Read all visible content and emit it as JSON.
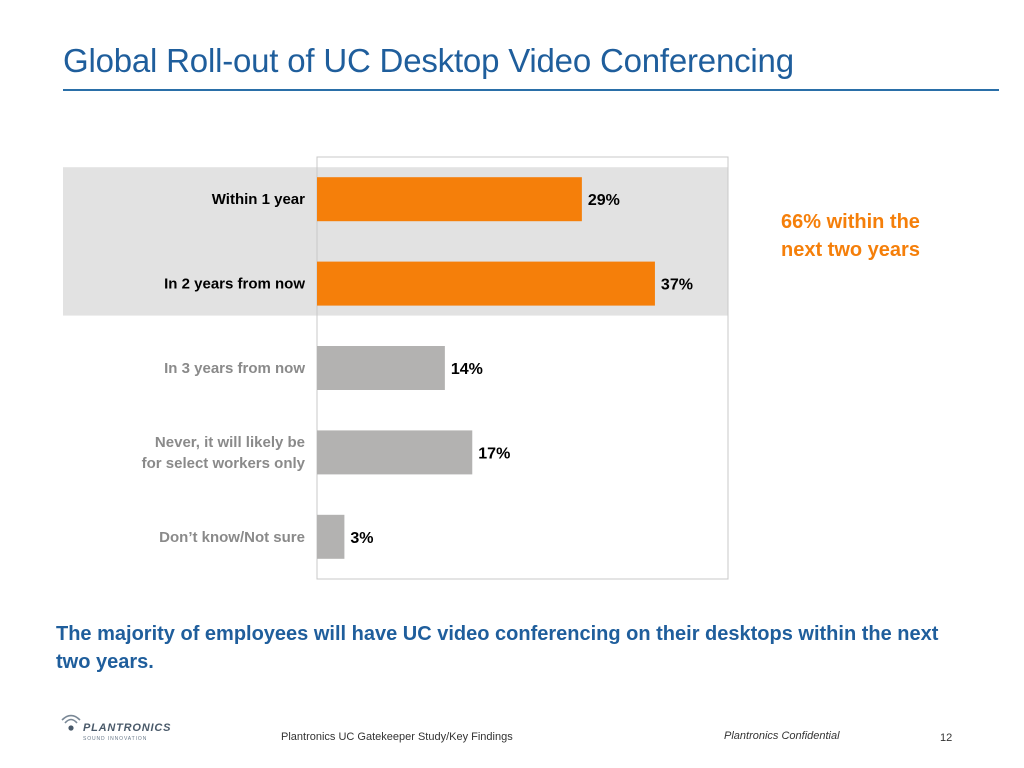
{
  "slide": {
    "title": "Global Roll-out of UC Desktop Video Conferencing",
    "callout": "66% within the next two years",
    "conclusion": "The majority of employees will have UC video conferencing on their desktops within the next two years.",
    "footer_source": "Plantronics UC Gatekeeper Study/Key Findings",
    "footer_confidential": "Plantronics Confidential",
    "page_number": "12",
    "logo_text": "PLANTRONICS",
    "logo_tagline": "SOUND INNOVATION"
  },
  "colors": {
    "title": "#1f5e9c",
    "highlight_bar": "#f57f0a",
    "normal_bar": "#b3b2b1",
    "highlight_band": "#e2e2e2",
    "highlight_label": "#000000",
    "normal_label": "#8a8a8a"
  },
  "chart_data": {
    "type": "bar",
    "orientation": "horizontal",
    "categories": [
      [
        "Within 1 year"
      ],
      [
        "In 2 years from now"
      ],
      [
        "In 3 years from now"
      ],
      [
        "Never, it will likely be",
        "for select workers only"
      ],
      [
        "Don’t know/Not sure"
      ]
    ],
    "values": [
      29,
      37,
      14,
      17,
      3
    ],
    "value_labels": [
      "29%",
      "37%",
      "14%",
      "17%",
      "3%"
    ],
    "highlighted": [
      true,
      true,
      false,
      false,
      false
    ],
    "unit": "%",
    "xlim": [
      0,
      45
    ],
    "grid": false,
    "legend": "none"
  }
}
